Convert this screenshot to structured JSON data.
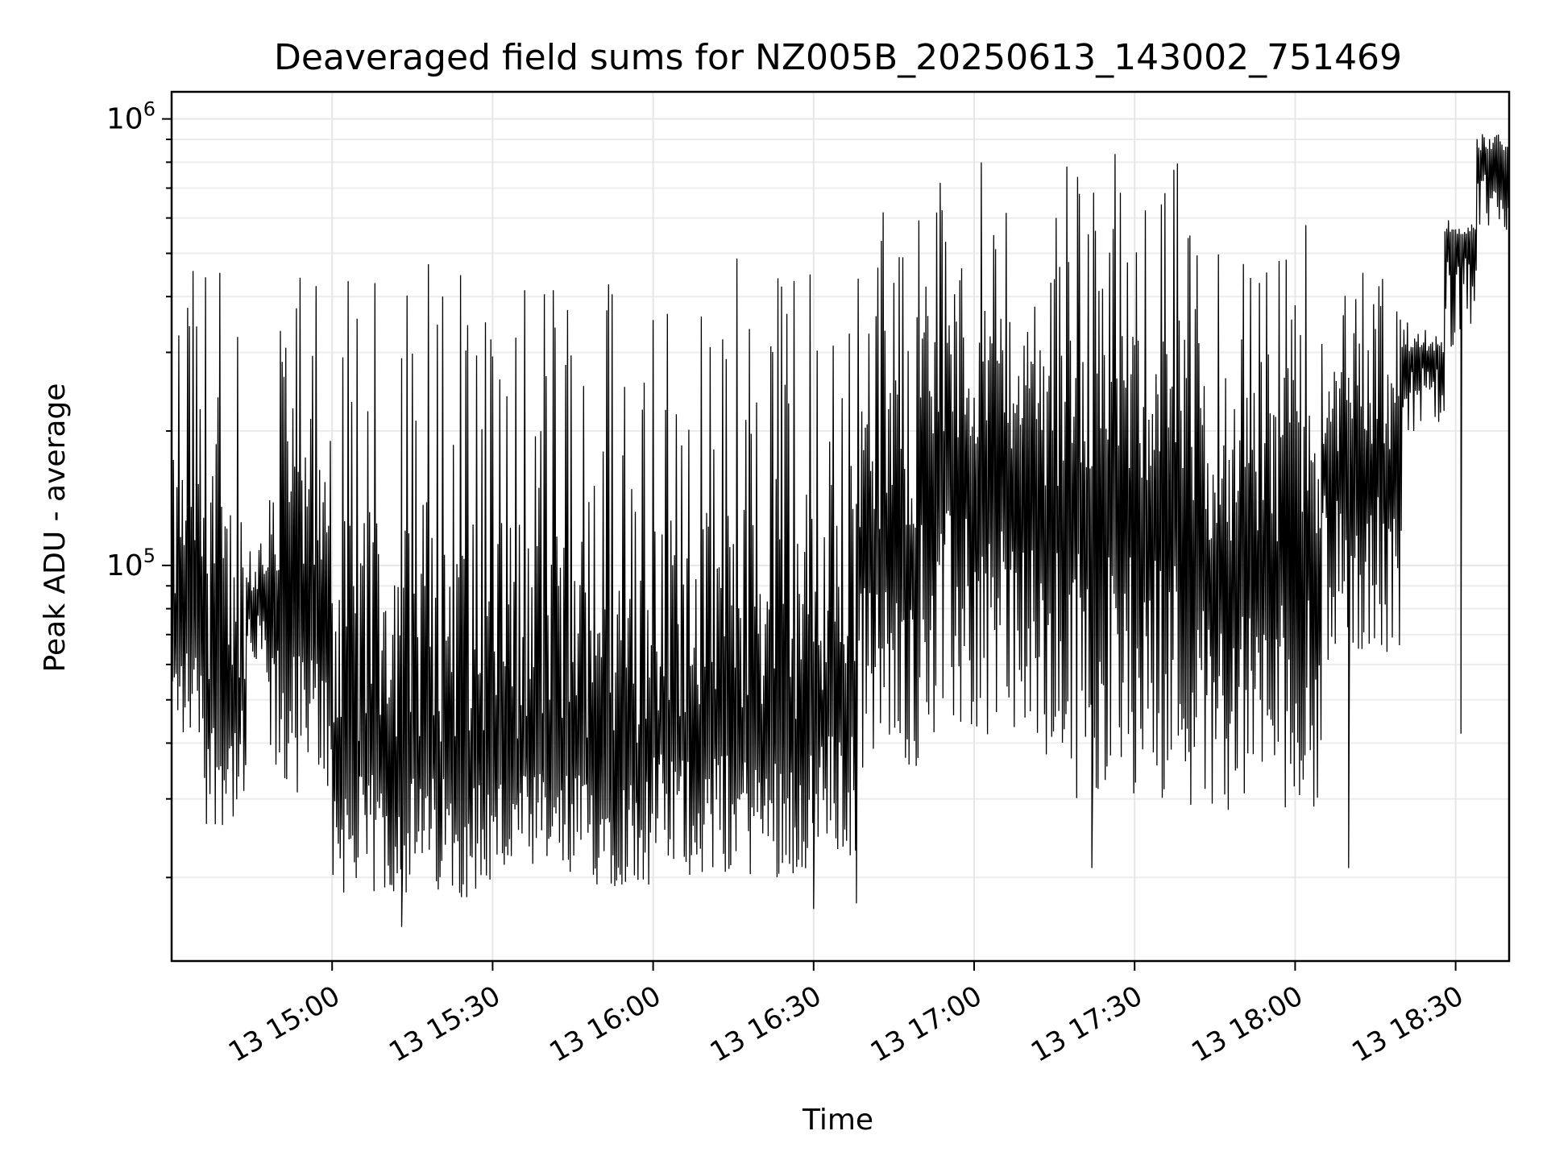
{
  "chart_data": {
    "type": "line",
    "title": "Deaveraged field sums for NZ005B_20250613_143002_751469",
    "xlabel": "Time",
    "ylabel": "Peak ADU - average",
    "yscale": "log",
    "ylim": [
      13000,
      1150000
    ],
    "xlim": [
      "2025-06-13 14:30:00",
      "2025-06-13 18:40:00"
    ],
    "grid": true,
    "x_ticks": [
      {
        "t": "2025-06-13 15:00",
        "label": "13 15:00"
      },
      {
        "t": "2025-06-13 15:30",
        "label": "13 15:30"
      },
      {
        "t": "2025-06-13 16:00",
        "label": "13 16:00"
      },
      {
        "t": "2025-06-13 16:30",
        "label": "13 16:30"
      },
      {
        "t": "2025-06-13 17:00",
        "label": "13 17:00"
      },
      {
        "t": "2025-06-13 17:30",
        "label": "13 17:30"
      },
      {
        "t": "2025-06-13 18:00",
        "label": "13 18:00"
      },
      {
        "t": "2025-06-13 18:30",
        "label": "13 18:30"
      }
    ],
    "y_ticks": [
      {
        "value": 100000,
        "base": "10",
        "exp": "5"
      },
      {
        "value": 1000000,
        "base": "10",
        "exp": "6"
      }
    ],
    "series": [
      {
        "line_color": "#000000",
        "segments": [
          {
            "start": "2025-06-13 14:30",
            "end": "2025-06-13 14:36",
            "low": 40000,
            "high": 75000,
            "spike_max": 480000
          },
          {
            "start": "2025-06-13 14:36",
            "end": "2025-06-13 14:44",
            "low": 26000,
            "high": 55000,
            "spike_max": 500000
          },
          {
            "start": "2025-06-13 14:44",
            "end": "2025-06-13 14:48",
            "low": 55000,
            "high": 85000,
            "spike_max": 120000
          },
          {
            "start": "2025-06-13 14:48",
            "end": "2025-06-13 15:00",
            "low": 30000,
            "high": 80000,
            "spike_max": 460000
          },
          {
            "start": "2025-06-13 15:00",
            "end": "2025-06-13 15:30",
            "low": 18000,
            "high": 40000,
            "spike_max": 520000
          },
          {
            "start": "2025-06-13 15:30",
            "end": "2025-06-13 16:00",
            "low": 19000,
            "high": 40000,
            "spike_max": 500000
          },
          {
            "start": "2025-06-13 16:00",
            "end": "2025-06-13 16:30",
            "low": 20000,
            "high": 45000,
            "spike_max": 520000
          },
          {
            "start": "2025-06-13 16:30",
            "end": "2025-06-13 16:38",
            "low": 22000,
            "high": 50000,
            "spike_max": 500000
          },
          {
            "start": "2025-06-13 16:38",
            "end": "2025-06-13 16:50",
            "low": 35000,
            "high": 120000,
            "spike_max": 650000
          },
          {
            "start": "2025-06-13 16:50",
            "end": "2025-06-13 17:10",
            "low": 40000,
            "high": 180000,
            "spike_max": 800000
          },
          {
            "start": "2025-06-13 17:10",
            "end": "2025-06-13 17:40",
            "low": 30000,
            "high": 150000,
            "spike_max": 850000
          },
          {
            "start": "2025-06-13 17:40",
            "end": "2025-06-13 18:05",
            "low": 28000,
            "high": 110000,
            "spike_max": 600000
          },
          {
            "start": "2025-06-13 18:05",
            "end": "2025-06-13 18:20",
            "low": 60000,
            "high": 180000,
            "spike_max": 500000
          },
          {
            "start": "2025-06-13 18:20",
            "end": "2025-06-13 18:28",
            "low": 200000,
            "high": 300000,
            "spike_max": 350000
          },
          {
            "start": "2025-06-13 18:28",
            "end": "2025-06-13 18:34",
            "low": 300000,
            "high": 550000,
            "spike_max": 600000
          },
          {
            "start": "2025-06-13 18:34",
            "end": "2025-06-13 18:40",
            "low": 550000,
            "high": 850000,
            "spike_max": 930000
          }
        ],
        "samples_per_minute": 6,
        "noted_dips": [
          {
            "t": "2025-06-13 15:13",
            "value": 15500
          },
          {
            "t": "2025-06-13 16:30",
            "value": 17000
          },
          {
            "t": "2025-06-13 16:38",
            "value": 17500
          },
          {
            "t": "2025-06-13 17:22",
            "value": 21000
          },
          {
            "t": "2025-06-13 18:10",
            "value": 21000
          },
          {
            "t": "2025-06-13 18:31",
            "value": 42000
          }
        ]
      }
    ]
  }
}
